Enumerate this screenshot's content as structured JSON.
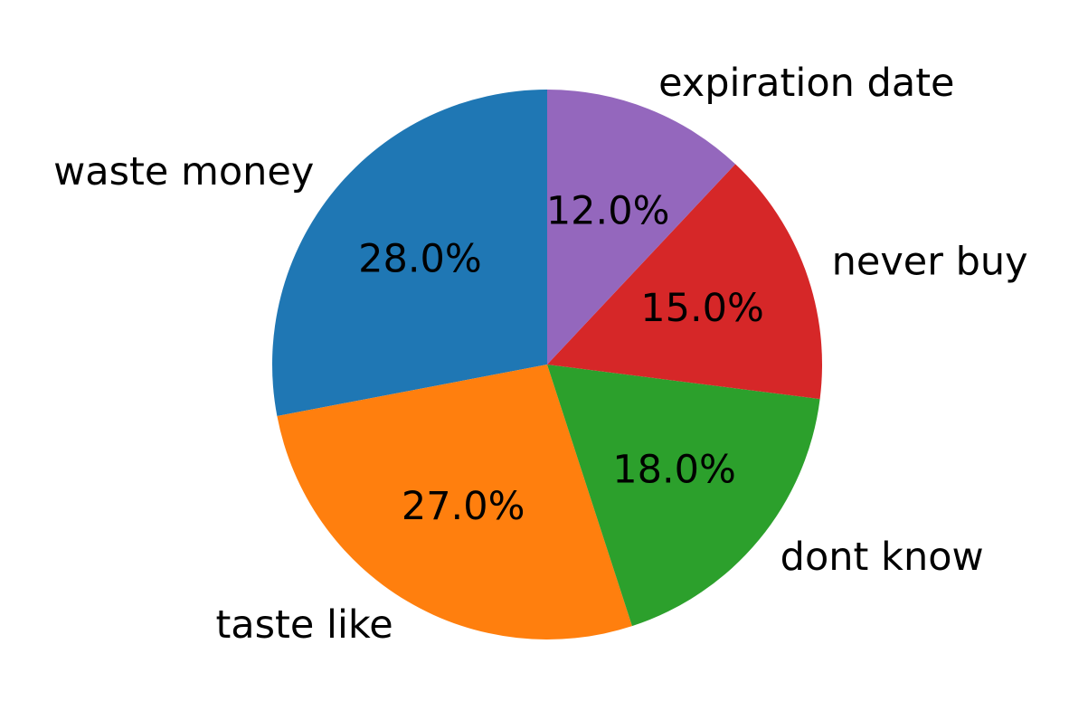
{
  "chart_data": {
    "type": "pie",
    "start_angle_deg": 90,
    "direction": "counterclockwise",
    "slices": [
      {
        "label": "waste money",
        "value": 28.0,
        "pct_label": "28.0%",
        "color": "#1f77b4"
      },
      {
        "label": "taste like",
        "value": 27.0,
        "pct_label": "27.0%",
        "color": "#ff7f0e"
      },
      {
        "label": "dont know",
        "value": 18.0,
        "pct_label": "18.0%",
        "color": "#2ca02c"
      },
      {
        "label": "never buy",
        "value": 15.0,
        "pct_label": "15.0%",
        "color": "#d62728"
      },
      {
        "label": "expiration date",
        "value": 12.0,
        "pct_label": "12.0%",
        "color": "#9467bd"
      }
    ]
  }
}
